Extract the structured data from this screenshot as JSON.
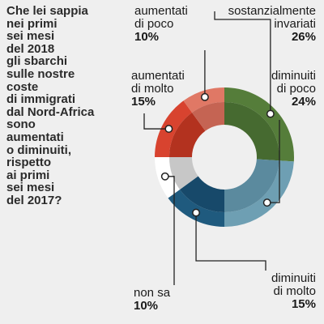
{
  "question_lines": [
    "Che lei sappia",
    "nei primi",
    "sei mesi",
    "del 2018",
    "gli sbarchi",
    "sulle nostre",
    "coste",
    "di immigrati",
    "dal Nord-Africa",
    "sono",
    "aumentati",
    "o diminuiti,",
    "rispetto",
    "ai primi",
    "sei mesi",
    "del 2017?"
  ],
  "chart_data": {
    "type": "pie",
    "variant": "donut",
    "slices": [
      {
        "label_lines": [
          "sostanzialmente",
          "invariati"
        ],
        "value": 26,
        "value_label": "26%",
        "color": "#557d3a",
        "inner_color": "#466a30"
      },
      {
        "label_lines": [
          "diminuiti",
          "di poco"
        ],
        "value": 24,
        "value_label": "24%",
        "color": "#6e9fb3",
        "inner_color": "#5b8a9e"
      },
      {
        "label_lines": [
          "diminuiti",
          "di molto"
        ],
        "value": 15,
        "value_label": "15%",
        "color": "#1f5a7e",
        "inner_color": "#17496a"
      },
      {
        "label_lines": [
          "non sa"
        ],
        "value": 10,
        "value_label": "10%",
        "color": "#ffffff",
        "inner_color": "#c7c7c7"
      },
      {
        "label_lines": [
          "aumentati",
          "di molto"
        ],
        "value": 15,
        "value_label": "15%",
        "color": "#d8432f",
        "inner_color": "#b3321f"
      },
      {
        "label_lines": [
          "aumentati",
          "di poco"
        ],
        "value": 10,
        "value_label": "10%",
        "color": "#e07865",
        "inner_color": "#c56453"
      }
    ]
  }
}
